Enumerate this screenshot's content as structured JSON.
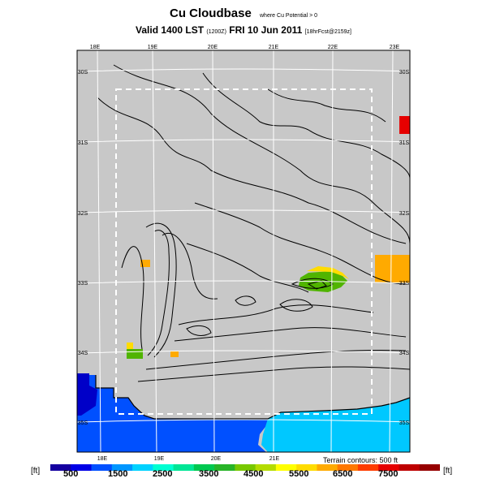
{
  "header": {
    "title": "Cu Cloudbase",
    "title_note": "where Cu Potential > 0",
    "valid_line": "Valid 1400 LST",
    "run_code": "(1200Z)",
    "date": "FRI 10 Jun 2011",
    "forecast_note": "[18hrFcst@2159z]"
  },
  "map": {
    "top_longitudes": [
      "18E",
      "19E",
      "20E",
      "21E",
      "22E",
      "23E"
    ],
    "bottom_longitudes": [
      "18E",
      "19E",
      "20E",
      "21E"
    ],
    "left_latitudes": [
      "30S",
      "31S",
      "32S",
      "33S",
      "34S",
      "35S"
    ],
    "right_latitudes": [
      "30S",
      "31S",
      "32S",
      "33S",
      "34S",
      "35S"
    ],
    "terrain_note": "Terrain contours: 500 ft",
    "colors": {
      "land": "#c8c8c8",
      "ocean_blue": "#0050ff",
      "ocean_dark": "#0000c8",
      "ocean_cyan": "#00c8ff",
      "green": "#50b400",
      "yellow": "#ffdc00",
      "orange": "#ffaa00",
      "red": "#e60000"
    }
  },
  "colorbar": {
    "unit_left": "[ft]",
    "unit_right": "[ft]",
    "labels": [
      "500",
      "1500",
      "2500",
      "3500",
      "4500",
      "5500",
      "6500",
      "7500"
    ],
    "colors": [
      "#1400a0",
      "#0000e6",
      "#0050ff",
      "#0096ff",
      "#00d2ff",
      "#00ffd2",
      "#00e696",
      "#00c850",
      "#28b428",
      "#78c800",
      "#b4dc00",
      "#ffff00",
      "#ffdc00",
      "#ffaa00",
      "#ff7800",
      "#ff3c00",
      "#e60000",
      "#be0000",
      "#960000"
    ]
  }
}
